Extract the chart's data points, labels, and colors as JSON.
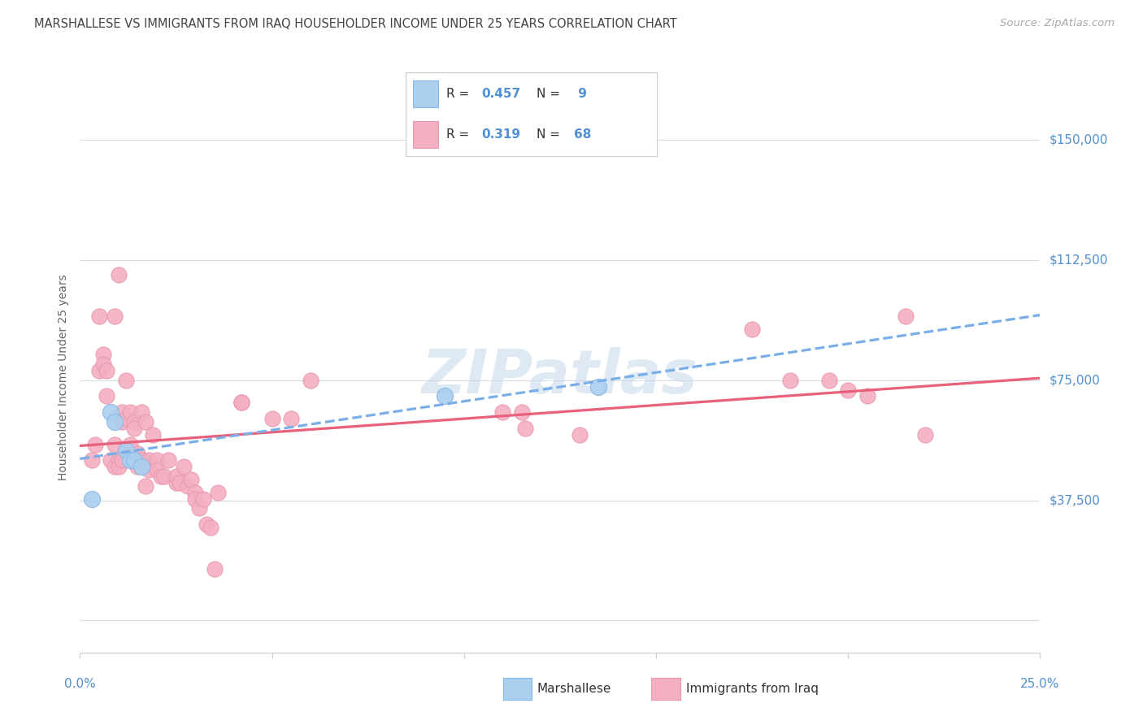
{
  "title": "MARSHALLESE VS IMMIGRANTS FROM IRAQ HOUSEHOLDER INCOME UNDER 25 YEARS CORRELATION CHART",
  "source": "Source: ZipAtlas.com",
  "ylabel": "Householder Income Under 25 years",
  "yticks": [
    0,
    37500,
    75000,
    112500,
    150000
  ],
  "ytick_labels": [
    "",
    "$37,500",
    "$75,000",
    "$112,500",
    "$150,000"
  ],
  "xmin": 0.0,
  "xmax": 0.25,
  "ymin": -10000,
  "ymax": 162000,
  "watermark": "ZIPatlas",
  "marshallese_x": [
    0.003,
    0.008,
    0.009,
    0.012,
    0.013,
    0.014,
    0.016,
    0.095,
    0.135
  ],
  "marshallese_y": [
    38000,
    65000,
    62000,
    53000,
    50000,
    50000,
    48000,
    70000,
    73000
  ],
  "iraq_x": [
    0.003,
    0.004,
    0.005,
    0.005,
    0.006,
    0.006,
    0.007,
    0.007,
    0.008,
    0.009,
    0.009,
    0.009,
    0.01,
    0.01,
    0.01,
    0.011,
    0.011,
    0.011,
    0.012,
    0.012,
    0.013,
    0.013,
    0.014,
    0.014,
    0.015,
    0.015,
    0.016,
    0.016,
    0.017,
    0.017,
    0.018,
    0.018,
    0.019,
    0.02,
    0.02,
    0.021,
    0.022,
    0.023,
    0.025,
    0.025,
    0.026,
    0.027,
    0.028,
    0.029,
    0.03,
    0.03,
    0.031,
    0.032,
    0.033,
    0.034,
    0.035,
    0.036,
    0.042,
    0.042,
    0.05,
    0.055,
    0.06,
    0.11,
    0.115,
    0.116,
    0.13,
    0.175,
    0.185,
    0.195,
    0.2,
    0.205,
    0.215,
    0.22
  ],
  "iraq_y": [
    50000,
    55000,
    95000,
    78000,
    83000,
    80000,
    78000,
    70000,
    50000,
    95000,
    55000,
    48000,
    108000,
    50000,
    48000,
    65000,
    62000,
    50000,
    75000,
    63000,
    55000,
    65000,
    62000,
    60000,
    52000,
    48000,
    50000,
    65000,
    62000,
    42000,
    47000,
    50000,
    58000,
    50000,
    47000,
    45000,
    45000,
    50000,
    43000,
    45000,
    43000,
    48000,
    42000,
    44000,
    40000,
    38000,
    35000,
    38000,
    30000,
    29000,
    16000,
    40000,
    68000,
    68000,
    63000,
    63000,
    75000,
    65000,
    65000,
    60000,
    58000,
    91000,
    75000,
    75000,
    72000,
    70000,
    95000,
    58000
  ],
  "blue_color": "#aacfef",
  "blue_edge": "#88b8e8",
  "pink_color": "#f4afc0",
  "pink_edge": "#e898b0",
  "trend_blue_color": "#7aaee8",
  "trend_pink_color": "#e8607a",
  "background_color": "#ffffff",
  "grid_color": "#d8dce8",
  "title_color": "#444444",
  "axis_label_color": "#5090d0",
  "ytick_color": "#5090d0",
  "legend_text_color": "#333333",
  "watermark_color": "#c5d8ec"
}
